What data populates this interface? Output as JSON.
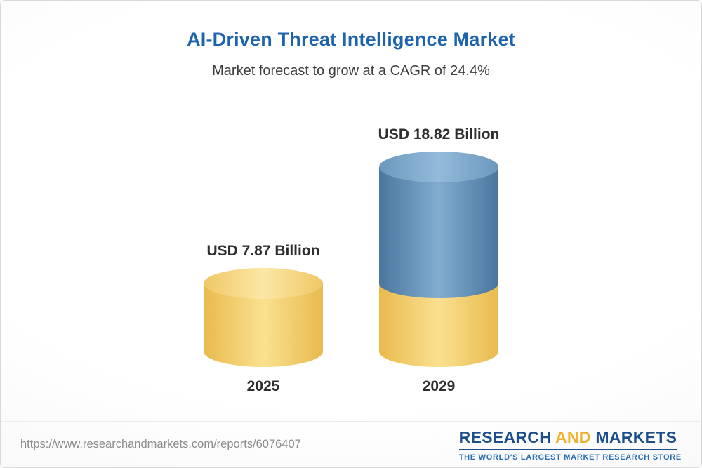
{
  "header": {
    "title": "AI-Driven Threat Intelligence Market",
    "subtitle": "Market forecast to grow at a CAGR of 24.4%"
  },
  "chart_data": {
    "type": "bar",
    "title": "AI-Driven Threat Intelligence Market",
    "subtitle": "Market forecast to grow at a CAGR of 24.4%",
    "categories": [
      "2025",
      "2029"
    ],
    "values": [
      7.87,
      18.82
    ],
    "value_labels": [
      "USD 7.87 Billion",
      "USD 18.82 Billion"
    ],
    "unit": "USD Billion",
    "cagr": "24.4%",
    "layout": "3d-cylinder bars; 2029 bar stacked with base segment equal to 2025 value in yellow and growth portion in blue; labels above bars; years below",
    "colors": {
      "bar_2025": "#F3CD6F",
      "bar_2029_base": "#F3CD6F",
      "bar_2029_growth": "#5D8DB4",
      "title": "#1e63ae",
      "label_text": "#2e2e2e"
    }
  },
  "footer": {
    "url": "https://www.researchandmarkets.com/reports/6076407",
    "logo": {
      "part1": "RESEARCH",
      "part2": "AND",
      "part3": "MARKETS",
      "tagline": "THE WORLD'S LARGEST MARKET RESEARCH STORE"
    }
  }
}
